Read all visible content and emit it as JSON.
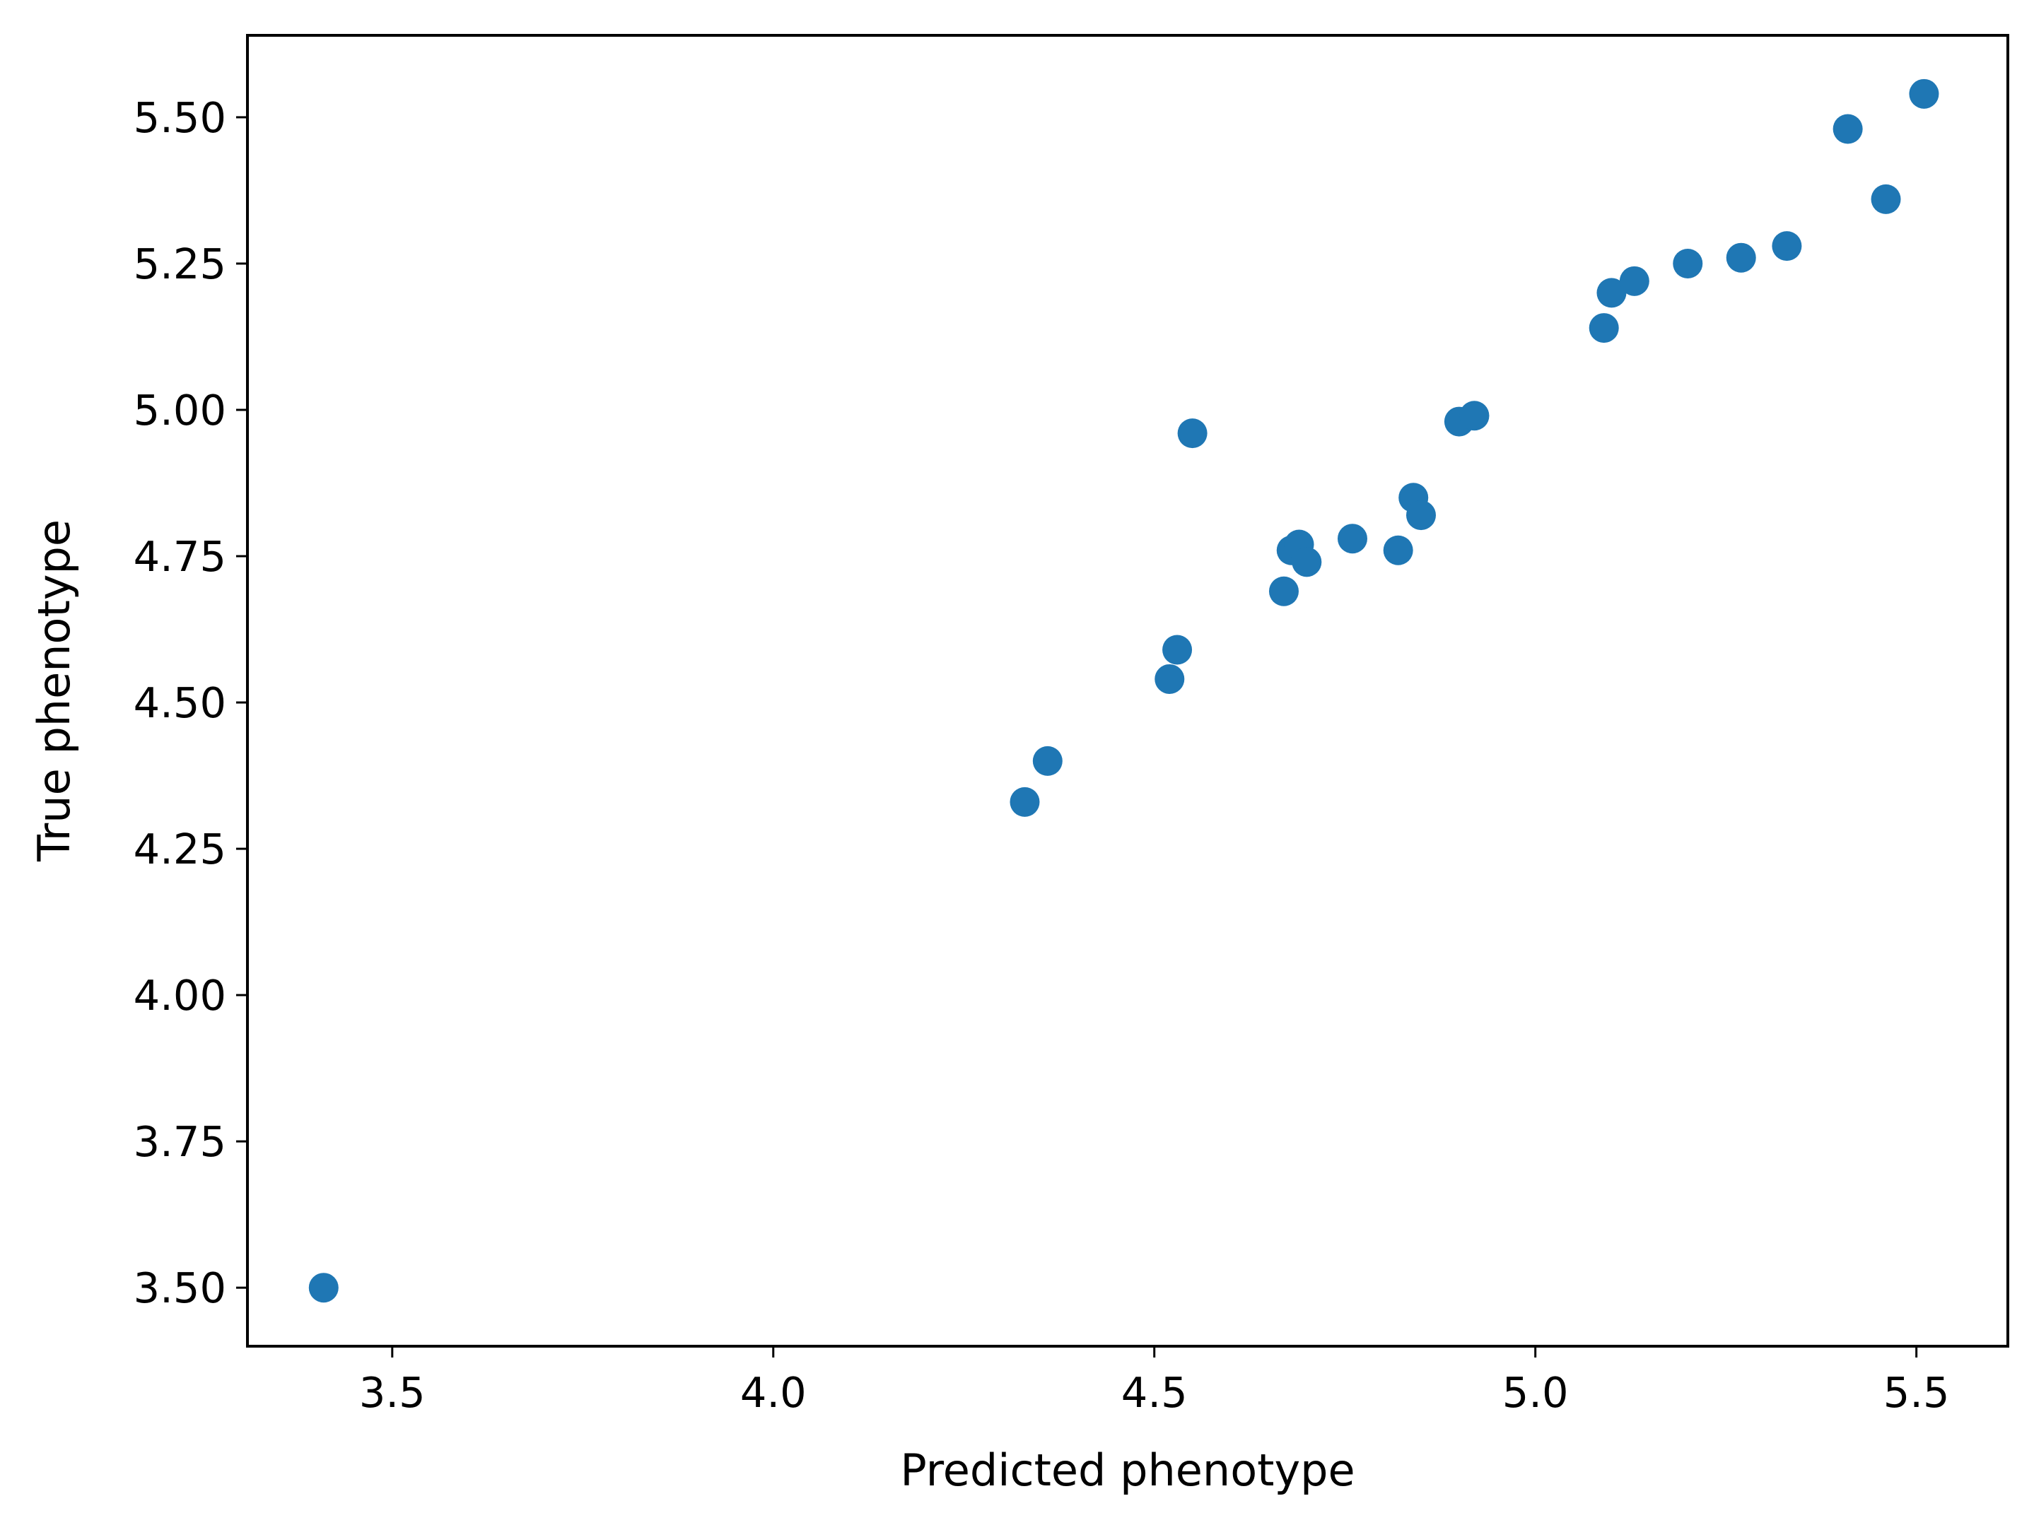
{
  "chart_data": {
    "type": "scatter",
    "title": "",
    "xlabel": "Predicted phenotype",
    "ylabel": "True phenotype",
    "xlim": [
      3.31,
      5.62
    ],
    "ylim": [
      3.4,
      5.64
    ],
    "xticks": [
      3.5,
      4.0,
      4.5,
      5.0,
      5.5
    ],
    "xtick_labels": [
      "3.5",
      "4.0",
      "4.5",
      "5.0",
      "5.5"
    ],
    "yticks": [
      3.5,
      3.75,
      4.0,
      4.25,
      4.5,
      4.75,
      5.0,
      5.25,
      5.5
    ],
    "ytick_labels": [
      "3.50",
      "3.75",
      "4.00",
      "4.25",
      "4.50",
      "4.75",
      "5.00",
      "5.25",
      "5.50"
    ],
    "grid": false,
    "marker_color": "#1f77b4",
    "points": [
      {
        "x": 3.41,
        "y": 3.5
      },
      {
        "x": 4.33,
        "y": 4.33
      },
      {
        "x": 4.36,
        "y": 4.4
      },
      {
        "x": 4.52,
        "y": 4.54
      },
      {
        "x": 4.53,
        "y": 4.59
      },
      {
        "x": 4.55,
        "y": 4.96
      },
      {
        "x": 4.67,
        "y": 4.69
      },
      {
        "x": 4.68,
        "y": 4.76
      },
      {
        "x": 4.69,
        "y": 4.77
      },
      {
        "x": 4.7,
        "y": 4.74
      },
      {
        "x": 4.76,
        "y": 4.78
      },
      {
        "x": 4.82,
        "y": 4.76
      },
      {
        "x": 4.84,
        "y": 4.85
      },
      {
        "x": 4.85,
        "y": 4.82
      },
      {
        "x": 4.9,
        "y": 4.98
      },
      {
        "x": 4.92,
        "y": 4.99
      },
      {
        "x": 5.09,
        "y": 5.14
      },
      {
        "x": 5.1,
        "y": 5.2
      },
      {
        "x": 5.13,
        "y": 5.22
      },
      {
        "x": 5.2,
        "y": 5.25
      },
      {
        "x": 5.27,
        "y": 5.26
      },
      {
        "x": 5.33,
        "y": 5.28
      },
      {
        "x": 5.41,
        "y": 5.48
      },
      {
        "x": 5.46,
        "y": 5.36
      },
      {
        "x": 5.51,
        "y": 5.54
      }
    ]
  }
}
